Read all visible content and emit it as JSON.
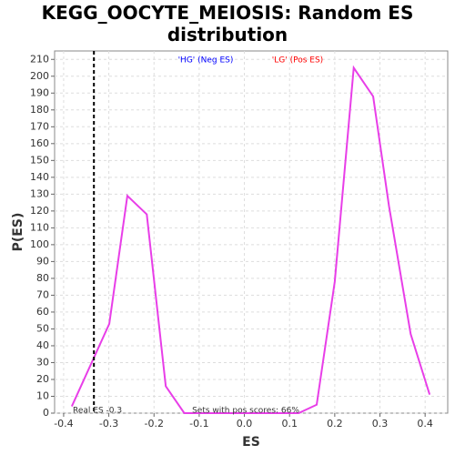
{
  "chart_data": {
    "type": "line",
    "title": "KEGG_OOCYTE_MEIOSIS: Random ES distribution",
    "xlabel": "ES",
    "ylabel": "P(ES)",
    "x": [
      -0.382,
      -0.299,
      -0.259,
      -0.216,
      -0.174,
      -0.133,
      0.12,
      0.16,
      0.2,
      0.242,
      0.285,
      0.32,
      0.368,
      0.41
    ],
    "series": [
      {
        "name": "P(ES)",
        "color": "#e83ee8",
        "values": [
          4,
          53,
          129,
          118,
          16,
          0,
          0,
          5,
          78,
          205,
          188,
          123,
          47,
          11
        ]
      }
    ],
    "xlim": [
      -0.42,
      0.45
    ],
    "ylim": [
      0,
      215
    ],
    "xticks": [
      -0.4,
      -0.3,
      -0.2,
      -0.1,
      {
        "value": 0,
        "label": "0.0"
      },
      0.1,
      0.2,
      0.3,
      0.4
    ],
    "yticks": [
      0,
      10,
      20,
      30,
      40,
      50,
      60,
      70,
      80,
      90,
      100,
      110,
      120,
      130,
      140,
      150,
      160,
      170,
      180,
      190,
      200,
      210
    ],
    "grid": true,
    "vline": -0.333,
    "annotations": [
      {
        "text": "'HG' (Neg ES)",
        "color": "#0000ff"
      },
      {
        "text": "'LG' (Pos ES)",
        "color": "#ff0000"
      },
      {
        "text": "Real ES -0.3",
        "color": "#333333"
      },
      {
        "text": "Sets with pos scores: 66%",
        "color": "#333333"
      }
    ]
  }
}
